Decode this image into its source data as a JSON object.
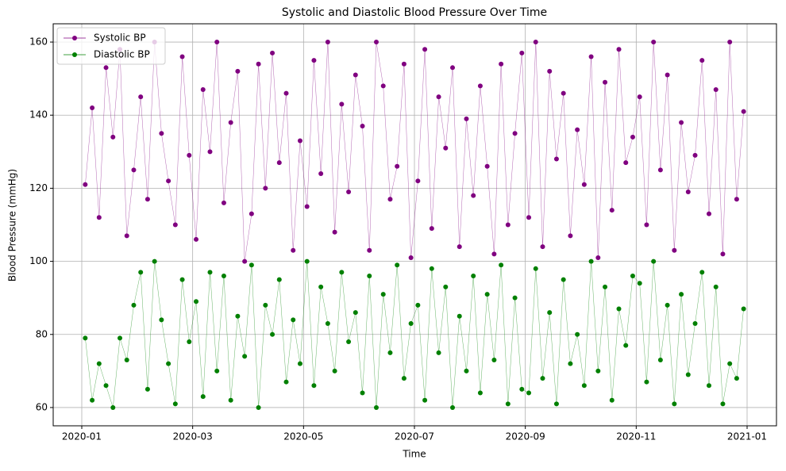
{
  "chart_data": {
    "type": "scatter-line",
    "title": "Systolic and Diastolic Blood Pressure Over Time",
    "xlabel": "Time",
    "ylabel": "Blood Pressure (mmHg)",
    "x": [
      "2020-01",
      "2020-01",
      "2020-01",
      "2020-01",
      "2020-01",
      "2020-01",
      "2020-01",
      "2020-01",
      "2020-02",
      "2020-02",
      "2020-02",
      "2020-02",
      "2020-02",
      "2020-02",
      "2020-02",
      "2020-02",
      "2020-03",
      "2020-03",
      "2020-03",
      "2020-03",
      "2020-03",
      "2020-03",
      "2020-03",
      "2020-03",
      "2020-04",
      "2020-04",
      "2020-04",
      "2020-04",
      "2020-04",
      "2020-04",
      "2020-04",
      "2020-04",
      "2020-05",
      "2020-05",
      "2020-05",
      "2020-05",
      "2020-05",
      "2020-05",
      "2020-05",
      "2020-05",
      "2020-06",
      "2020-06",
      "2020-06",
      "2020-06",
      "2020-06",
      "2020-06",
      "2020-06",
      "2020-06",
      "2020-07",
      "2020-07",
      "2020-07",
      "2020-07",
      "2020-07",
      "2020-07",
      "2020-07",
      "2020-07",
      "2020-08",
      "2020-08",
      "2020-08",
      "2020-08",
      "2020-08",
      "2020-08",
      "2020-08",
      "2020-08",
      "2020-09",
      "2020-09",
      "2020-09",
      "2020-09",
      "2020-09",
      "2020-09",
      "2020-09",
      "2020-09",
      "2020-10",
      "2020-10",
      "2020-10",
      "2020-10",
      "2020-10",
      "2020-10",
      "2020-10",
      "2020-10",
      "2020-11",
      "2020-11",
      "2020-11",
      "2020-11",
      "2020-11",
      "2020-11",
      "2020-11",
      "2020-11",
      "2020-12",
      "2020-12",
      "2020-12",
      "2020-12",
      "2020-12",
      "2020-12",
      "2020-12",
      "2020-12"
    ],
    "series": [
      {
        "name": "Systolic BP",
        "color": "purple",
        "values": [
          121,
          142,
          112,
          153,
          134,
          158,
          107,
          125,
          145,
          117,
          160,
          135,
          122,
          110,
          156,
          129,
          106,
          147,
          130,
          160,
          116,
          138,
          152,
          100,
          113,
          154,
          120,
          157,
          127,
          146,
          103,
          133,
          115,
          155,
          124,
          160,
          108,
          143,
          119,
          151,
          137,
          103,
          160,
          148,
          117,
          126,
          154,
          101,
          122,
          158,
          109,
          145,
          131,
          153,
          104,
          139,
          118,
          148,
          126,
          102,
          154,
          110,
          135,
          157,
          112,
          160,
          104,
          152,
          128,
          146,
          107,
          136,
          121,
          156,
          101,
          149,
          114,
          158,
          127,
          134,
          145,
          110,
          160,
          125,
          151,
          103,
          138,
          119,
          129,
          155,
          113,
          147,
          102,
          160,
          117,
          141
        ]
      },
      {
        "name": "Diastolic BP",
        "color": "green",
        "values": [
          79,
          62,
          72,
          66,
          60,
          79,
          73,
          88,
          97,
          65,
          100,
          84,
          72,
          61,
          95,
          78,
          89,
          63,
          97,
          70,
          96,
          62,
          85,
          74,
          99,
          60,
          88,
          80,
          95,
          67,
          84,
          72,
          100,
          66,
          93,
          83,
          70,
          97,
          78,
          86,
          64,
          96,
          60,
          91,
          75,
          99,
          68,
          83,
          88,
          62,
          98,
          75,
          93,
          60,
          85,
          70,
          96,
          64,
          91,
          73,
          99,
          61,
          90,
          65,
          64,
          98,
          68,
          86,
          61,
          95,
          72,
          80,
          66,
          100,
          70,
          93,
          62,
          87,
          77,
          96,
          94,
          67,
          100,
          73,
          88,
          61,
          91,
          69,
          83,
          97,
          66,
          93,
          61,
          72,
          68,
          87
        ]
      }
    ],
    "xlim": [
      "2020-01",
      "2021-01"
    ],
    "xticks": [
      "2020-01",
      "2020-03",
      "2020-05",
      "2020-07",
      "2020-09",
      "2020-11",
      "2021-01"
    ],
    "ylim": [
      55,
      165
    ],
    "yticks": [
      60,
      80,
      100,
      120,
      140,
      160
    ],
    "grid": true,
    "legend": "upper left"
  }
}
